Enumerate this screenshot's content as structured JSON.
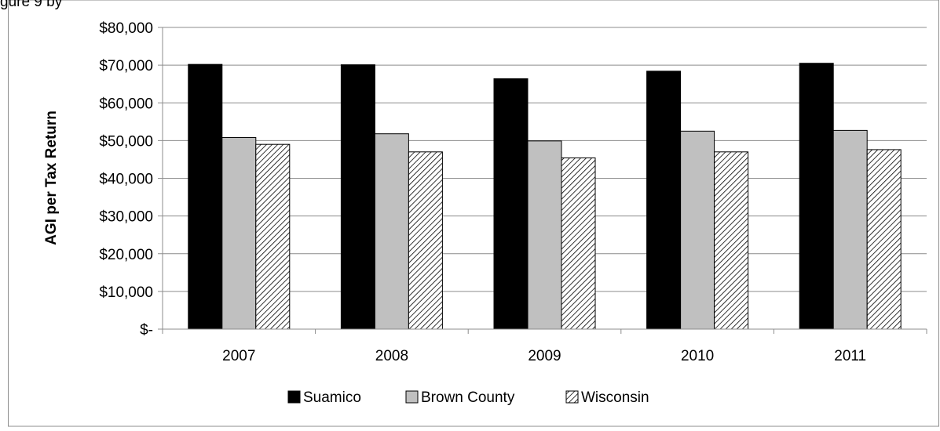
{
  "caption_fragment": "gure 9 by",
  "chart_data": {
    "type": "bar",
    "title": "",
    "xlabel": "",
    "ylabel": "AGI per Tax Return",
    "categories": [
      "2007",
      "2008",
      "2009",
      "2010",
      "2011"
    ],
    "series": [
      {
        "name": "Suamico",
        "values": [
          70200,
          70100,
          66400,
          68400,
          70500
        ],
        "color": "#000000",
        "pattern": "solid"
      },
      {
        "name": "Brown County",
        "values": [
          50800,
          51800,
          49900,
          52500,
          52700
        ],
        "color": "#c0c0c0",
        "pattern": "solid"
      },
      {
        "name": "Wisconsin",
        "values": [
          49000,
          47000,
          45400,
          47000,
          47600
        ],
        "color": "#ffffff",
        "pattern": "diagonal-hatch"
      }
    ],
    "ylim": [
      0,
      80000
    ],
    "yticks": [
      0,
      10000,
      20000,
      30000,
      40000,
      50000,
      60000,
      70000,
      80000
    ],
    "ytick_labels": [
      "$-",
      "$10,000",
      "$20,000",
      "$30,000",
      "$40,000",
      "$50,000",
      "$60,000",
      "$70,000",
      "$80,000"
    ],
    "grid": true,
    "legend": "bottom"
  }
}
